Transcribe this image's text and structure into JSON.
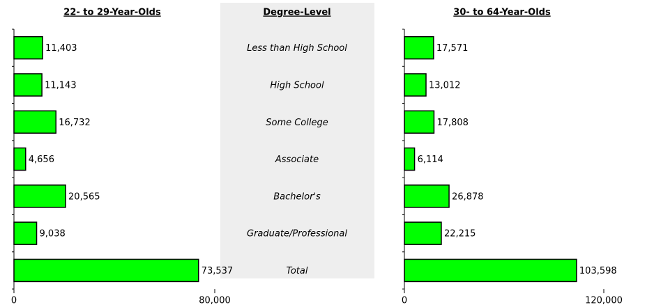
{
  "degree_levels": {
    "title": "Degree-Level",
    "categories": [
      "Less than High School",
      "High School",
      "Some College",
      "Associate",
      "Bachelor's",
      "Graduate/Professional",
      "Total"
    ]
  },
  "chart_data": [
    {
      "type": "bar",
      "title": "22- to 29-Year-Olds",
      "color": "#00ff00",
      "values": [
        11403,
        11143,
        16732,
        4656,
        20565,
        9038,
        73537
      ],
      "value_labels": [
        "11,403",
        "11,143",
        "16,732",
        "4,656",
        "20,565",
        "9,038",
        "73,537"
      ],
      "xlim": [
        0,
        80000
      ],
      "xticks": [
        0,
        {
          "value": 80000,
          "label": "80,000"
        }
      ]
    },
    {
      "type": "bar",
      "title": "30- to 64-Year-Olds",
      "color": "#00ff00",
      "values": [
        17571,
        13012,
        17808,
        6114,
        26878,
        22215,
        103598
      ],
      "value_labels": [
        "17,571",
        "13,012",
        "17,808",
        "6,114",
        "26,878",
        "22,215",
        "103,598"
      ],
      "xlim": [
        0,
        120000
      ],
      "xticks": [
        0,
        {
          "value": 120000,
          "label": "120,000"
        }
      ]
    }
  ]
}
